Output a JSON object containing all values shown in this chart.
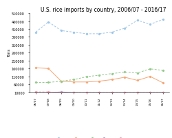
{
  "title": "U.S. rice imports by country, 2006/07 - 2016/17",
  "ylabel": "Tons",
  "years": [
    "06/07",
    "07/08",
    "08/09",
    "09/10",
    "10/11",
    "11/12",
    "12/13",
    "13/14",
    "14/15",
    "15/16",
    "16/17"
  ],
  "Thailand": [
    390000,
    455000,
    400000,
    390000,
    380000,
    380000,
    390000,
    415000,
    465000,
    440000,
    470000
  ],
  "Vietnam": [
    165000,
    160000,
    80000,
    75000,
    75000,
    80000,
    90000,
    105000,
    85000,
    110000,
    70000
  ],
  "India": [
    72000,
    72000,
    80000,
    90000,
    108000,
    118000,
    128000,
    138000,
    132000,
    158000,
    148000
  ],
  "Pakistan": [
    8000,
    8000,
    12000,
    8000,
    8000,
    8000,
    8000,
    8000,
    8000,
    8000,
    8000
  ],
  "Rest of World": [
    12000,
    12000,
    8000,
    8000,
    8000,
    8000,
    8000,
    8000,
    8000,
    8000,
    8000
  ],
  "colors": {
    "Thailand": "#9ec6e8",
    "Vietnam": "#f4a776",
    "India": "#93c98a",
    "Pakistan": "#b09fcc",
    "Rest of World": "#f4a0b0"
  },
  "linestyles": {
    "Thailand": "--",
    "Vietnam": "-",
    "India": "--",
    "Pakistan": "-",
    "Rest of World": "--"
  },
  "ylim": [
    10000,
    510000
  ],
  "yticks": [
    10000,
    60000,
    110000,
    160000,
    210000,
    260000,
    310000,
    360000,
    410000,
    460000,
    510000
  ],
  "background_color": "#ffffff",
  "title_fontsize": 5.5
}
